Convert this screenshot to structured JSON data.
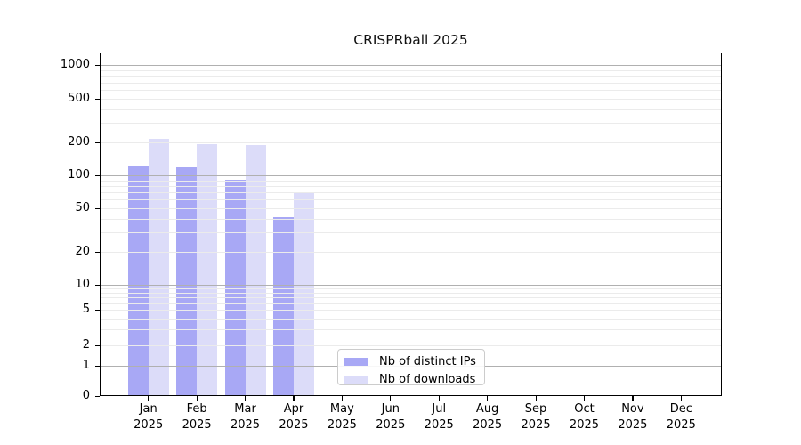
{
  "chart_data": {
    "type": "bar",
    "title": "CRISPRball 2025",
    "xlabel": "",
    "ylabel": "",
    "scale": "symlog",
    "grid": "on",
    "legend_position": "lower-center-left",
    "year_label": "2025",
    "months": [
      "Jan",
      "Feb",
      "Mar",
      "Apr",
      "May",
      "Jun",
      "Jul",
      "Aug",
      "Sep",
      "Oct",
      "Nov",
      "Dec"
    ],
    "yticks": [
      0,
      1,
      2,
      5,
      10,
      20,
      50,
      100,
      200,
      500,
      1000
    ],
    "ylim": [
      0,
      1400
    ],
    "series": [
      {
        "name": "Nb of distinct IPs",
        "color": "#a8a8f5",
        "values": [
          120,
          117,
          90,
          41,
          null,
          null,
          null,
          null,
          null,
          null,
          null,
          null
        ]
      },
      {
        "name": "Nb of downloads",
        "color": "#dcdcf9",
        "values": [
          210,
          190,
          185,
          69,
          null,
          null,
          null,
          null,
          null,
          null,
          null,
          null
        ]
      }
    ],
    "colors": {
      "major_grid": "#b0b0b0",
      "minor_grid": "#ebebeb",
      "spine": "#000000",
      "background": "#ffffff",
      "legend_border": "#cccccc"
    }
  }
}
